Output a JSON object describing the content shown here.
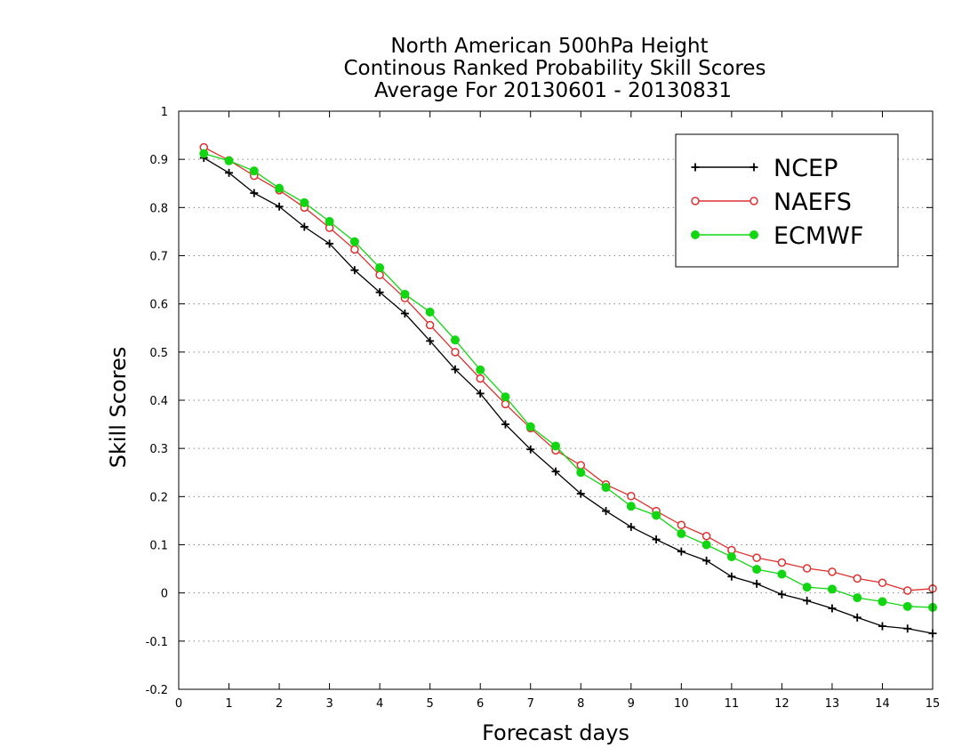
{
  "chart_data": {
    "type": "line",
    "title": [
      "North American 500hPa Height",
      "Continous Ranked Probability Skill Scores",
      "Average For 20130601 - 20130831"
    ],
    "xlabel": "Forecast days",
    "ylabel": "Skill Scores",
    "xlim": [
      0,
      15
    ],
    "ylim": [
      -0.2,
      1
    ],
    "xticks": [
      0,
      1,
      2,
      3,
      4,
      5,
      6,
      7,
      8,
      9,
      10,
      11,
      12,
      13,
      14,
      15
    ],
    "xtick_labels": [
      "0",
      "1",
      "2",
      "3",
      "4",
      "5",
      "6",
      "7",
      "8",
      "9",
      "10",
      "11",
      "12",
      "13",
      "14",
      "15"
    ],
    "yticks": [
      -0.2,
      -0.1,
      0,
      0.1,
      0.2,
      0.3,
      0.4,
      0.5,
      0.6,
      0.7,
      0.8,
      0.9,
      1
    ],
    "ytick_labels": [
      "-0.2",
      "-0.1",
      "0",
      "0.1",
      "0.2",
      "0.3",
      "0.4",
      "0.5",
      "0.6",
      "0.7",
      "0.8",
      "0.9",
      "1"
    ],
    "grid": "horizontal dotted",
    "legend_position": "top-right",
    "x": [
      0.5,
      1,
      1.5,
      2,
      2.5,
      3,
      3.5,
      4,
      4.5,
      5,
      5.5,
      6,
      6.5,
      7,
      7.5,
      8,
      8.5,
      9,
      9.5,
      10,
      10.5,
      11,
      11.5,
      12,
      12.5,
      13,
      13.5,
      14,
      14.5,
      15
    ],
    "series": [
      {
        "name": "NCEP",
        "color": "#000000",
        "marker": "plus",
        "values": [
          0.903,
          0.872,
          0.83,
          0.802,
          0.76,
          0.725,
          0.67,
          0.624,
          0.58,
          0.523,
          0.464,
          0.414,
          0.35,
          0.298,
          0.252,
          0.206,
          0.17,
          0.137,
          0.111,
          0.086,
          0.067,
          0.034,
          0.019,
          -0.003,
          -0.016,
          -0.032,
          -0.051,
          -0.069,
          -0.074,
          -0.084
        ]
      },
      {
        "name": "NAEFS",
        "color": "#e03030",
        "marker": "open-circle",
        "values": [
          0.925,
          0.898,
          0.866,
          0.836,
          0.8,
          0.758,
          0.713,
          0.66,
          0.612,
          0.556,
          0.5,
          0.445,
          0.392,
          0.342,
          0.296,
          0.265,
          0.225,
          0.201,
          0.17,
          0.141,
          0.118,
          0.089,
          0.073,
          0.063,
          0.051,
          0.044,
          0.03,
          0.021,
          0.005,
          0.009
        ]
      },
      {
        "name": "ECMWF",
        "color": "#11d611",
        "marker": "filled-circle",
        "values": [
          0.912,
          0.897,
          0.876,
          0.84,
          0.81,
          0.771,
          0.729,
          0.675,
          0.62,
          0.583,
          0.525,
          0.463,
          0.407,
          0.345,
          0.305,
          0.25,
          0.219,
          0.18,
          0.161,
          0.123,
          0.1,
          0.075,
          0.049,
          0.039,
          0.012,
          0.008,
          -0.01,
          -0.018,
          -0.028,
          -0.03
        ]
      }
    ]
  }
}
